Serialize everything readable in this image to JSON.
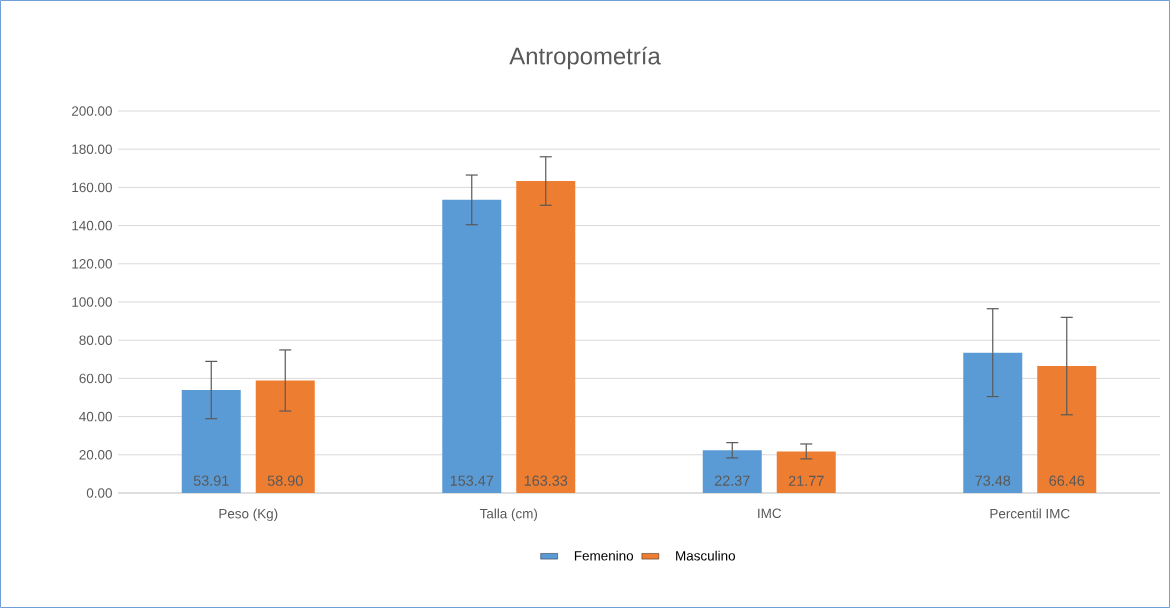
{
  "chart_data": {
    "type": "bar",
    "title": "Antropometría",
    "categories": [
      "Peso (Kg)",
      "Talla (cm)",
      "IMC",
      "Percentil IMC"
    ],
    "series": [
      {
        "name": "Femenino",
        "color": "#5b9bd5",
        "values": [
          53.91,
          153.47,
          22.37,
          73.48
        ],
        "errors": [
          15,
          13,
          4,
          23
        ],
        "value_labels": [
          "53.91",
          "153.47",
          "22.37",
          "73.48"
        ]
      },
      {
        "name": "Masculino",
        "color": "#ed7d31",
        "values": [
          58.9,
          163.33,
          21.77,
          66.46
        ],
        "errors": [
          16,
          12.7,
          3.9,
          25.5
        ],
        "value_labels": [
          "58.90",
          "163.33",
          "21.77",
          "66.46"
        ]
      }
    ],
    "ylim": [
      0,
      200
    ],
    "yticks": [
      {
        "value": 0,
        "label": "0.00"
      },
      {
        "value": 20,
        "label": "20.00"
      },
      {
        "value": 40,
        "label": "40.00"
      },
      {
        "value": 60,
        "label": "60.00"
      },
      {
        "value": 80,
        "label": "80.00"
      },
      {
        "value": 100,
        "label": "100.00"
      },
      {
        "value": 120,
        "label": "120.00"
      },
      {
        "value": 140,
        "label": "140.00"
      },
      {
        "value": 160,
        "label": "160.00"
      },
      {
        "value": 180,
        "label": "180.00"
      },
      {
        "value": 200,
        "label": "200.00"
      }
    ],
    "grid": "y",
    "legend": "bottom"
  }
}
